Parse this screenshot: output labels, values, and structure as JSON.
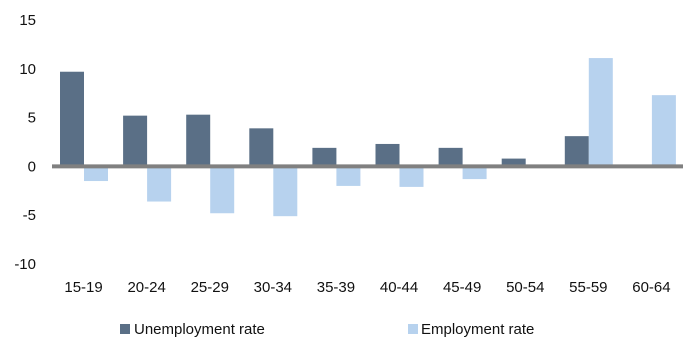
{
  "chart_data": {
    "type": "bar",
    "categories": [
      "15-19",
      "20-24",
      "25-29",
      "30-34",
      "35-39",
      "40-44",
      "45-49",
      "50-54",
      "55-59",
      "60-64"
    ],
    "series": [
      {
        "name": "Unemployment rate",
        "color": "#5a6f86",
        "values": [
          9.7,
          5.2,
          5.3,
          3.9,
          1.9,
          2.3,
          1.9,
          0.8,
          3.1,
          0.0
        ]
      },
      {
        "name": "Employment rate",
        "color": "#b7d2ee",
        "values": [
          -1.5,
          -3.6,
          -4.8,
          -5.1,
          -2.0,
          -2.1,
          -1.3,
          0.0,
          11.1,
          7.3
        ]
      }
    ],
    "ylim": [
      -10,
      15
    ],
    "yticks": [
      15,
      10,
      5,
      0,
      -5,
      -10
    ],
    "grid": false,
    "legend": "bottom"
  }
}
